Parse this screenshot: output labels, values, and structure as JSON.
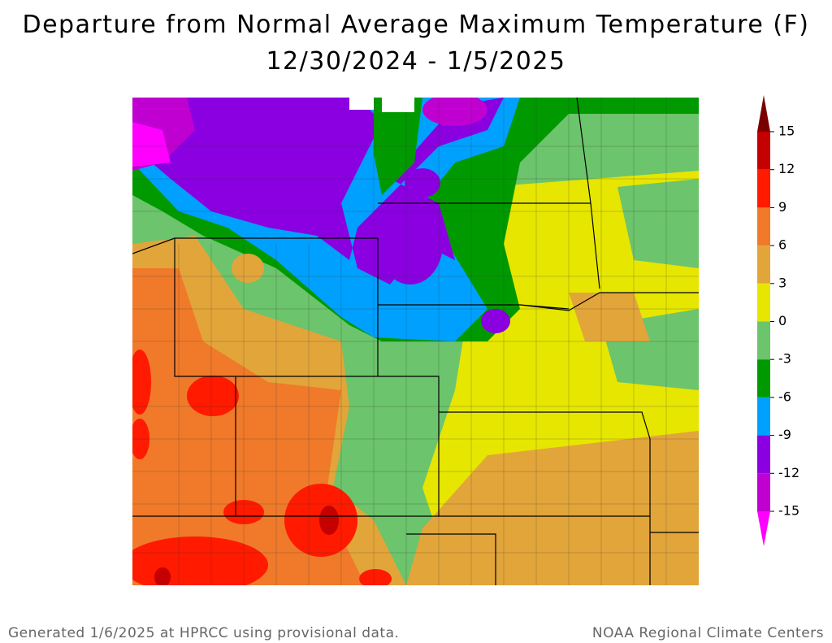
{
  "header": {
    "title": "Departure from Normal Average Maximum Temperature (F)",
    "subtitle": "12/30/2024 - 1/5/2025"
  },
  "legend": {
    "ticks": [
      15,
      12,
      9,
      6,
      3,
      0,
      -3,
      -6,
      -9,
      -12,
      -15
    ],
    "colors": [
      "#7a0000",
      "#c40000",
      "#ff1a00",
      "#f07a2a",
      "#e2a53a",
      "#e6e600",
      "#6cc46c",
      "#009a00",
      "#00a0ff",
      "#8a00e0",
      "#c000d0",
      "#ff00ff"
    ]
  },
  "footer": {
    "left": "Generated 1/6/2025 at HPRCC using provisional data.",
    "right": "NOAA Regional Climate Centers"
  }
}
